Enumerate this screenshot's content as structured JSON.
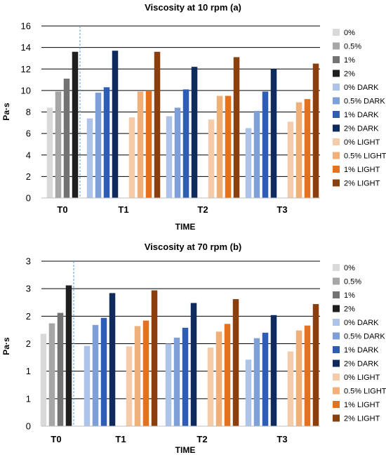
{
  "chart_data": [
    {
      "type": "bar",
      "title": "Viscosity at 10 rpm (a)",
      "xlabel": "TIME",
      "ylabel": "Pa·s",
      "ylim": [
        0,
        16
      ],
      "yticks": [
        "0",
        "2",
        "4",
        "6",
        "8",
        "10",
        "12",
        "14",
        "16"
      ],
      "grid": true,
      "legend_position": "right",
      "categories": [
        "T0",
        "T1",
        "T2",
        "T3"
      ],
      "series": [
        {
          "name": "0%",
          "color": "#d9d9d9",
          "values": [
            8.4,
            null,
            null,
            null
          ]
        },
        {
          "name": "0.5%",
          "color": "#a6a6a6",
          "values": [
            9.9,
            null,
            null,
            null
          ]
        },
        {
          "name": "1%",
          "color": "#737373",
          "values": [
            11.1,
            null,
            null,
            null
          ]
        },
        {
          "name": "2%",
          "color": "#1f1f1f",
          "values": [
            13.6,
            null,
            null,
            null
          ]
        },
        {
          "name": "0% DARK",
          "color": "#adc4e8",
          "values": [
            null,
            7.4,
            7.6,
            6.5
          ]
        },
        {
          "name": "0.5% DARK",
          "color": "#7f9fd9",
          "values": [
            null,
            9.8,
            8.4,
            8.1
          ]
        },
        {
          "name": "1% DARK",
          "color": "#2e5db5",
          "values": [
            null,
            10.3,
            10.1,
            9.9
          ]
        },
        {
          "name": "2% DARK",
          "color": "#0f2a5c",
          "values": [
            null,
            13.7,
            12.2,
            12.0
          ]
        },
        {
          "name": "0% LIGHT",
          "color": "#f5ccaa",
          "values": [
            null,
            7.5,
            7.3,
            7.1
          ]
        },
        {
          "name": "0.5% LIGHT",
          "color": "#efb07a",
          "values": [
            null,
            9.9,
            9.5,
            8.9
          ]
        },
        {
          "name": "1% LIGHT",
          "color": "#e5711c",
          "values": [
            null,
            10.0,
            9.5,
            9.2
          ]
        },
        {
          "name": "2% LIGHT",
          "color": "#8b3f0e",
          "values": [
            null,
            13.6,
            13.1,
            12.5
          ]
        }
      ]
    },
    {
      "type": "bar",
      "title": "Viscosity at 70 rpm (b)",
      "xlabel": "TIME",
      "ylabel": "Pa·s",
      "ylim": [
        0,
        3
      ],
      "yticks": [
        "0",
        "1",
        "1",
        "2",
        "2",
        "3",
        "3"
      ],
      "grid": true,
      "legend_position": "right",
      "categories": [
        "T0",
        "T1",
        "T2",
        "T3"
      ],
      "series": [
        {
          "name": "0%",
          "color": "#d9d9d9",
          "values": [
            1.68,
            null,
            null,
            null
          ]
        },
        {
          "name": "0.5%",
          "color": "#a6a6a6",
          "values": [
            1.87,
            null,
            null,
            null
          ]
        },
        {
          "name": "1%",
          "color": "#737373",
          "values": [
            2.06,
            null,
            null,
            null
          ]
        },
        {
          "name": "2%",
          "color": "#1f1f1f",
          "values": [
            2.56,
            null,
            null,
            null
          ]
        },
        {
          "name": "0% DARK",
          "color": "#adc4e8",
          "values": [
            null,
            1.46,
            1.5,
            1.21
          ]
        },
        {
          "name": "0.5% DARK",
          "color": "#7f9fd9",
          "values": [
            null,
            1.84,
            1.61,
            1.6
          ]
        },
        {
          "name": "1% DARK",
          "color": "#2e5db5",
          "values": [
            null,
            1.97,
            1.79,
            1.7
          ]
        },
        {
          "name": "2% DARK",
          "color": "#0f2a5c",
          "values": [
            null,
            2.42,
            2.24,
            2.02
          ]
        },
        {
          "name": "0% LIGHT",
          "color": "#f5ccaa",
          "values": [
            null,
            1.45,
            1.43,
            1.36
          ]
        },
        {
          "name": "0.5% LIGHT",
          "color": "#efb07a",
          "values": [
            null,
            1.82,
            1.72,
            1.74
          ]
        },
        {
          "name": "1% LIGHT",
          "color": "#e5711c",
          "values": [
            null,
            1.92,
            1.86,
            1.83
          ]
        },
        {
          "name": "2% LIGHT",
          "color": "#8b3f0e",
          "values": [
            null,
            2.47,
            2.31,
            2.22
          ]
        }
      ]
    }
  ]
}
